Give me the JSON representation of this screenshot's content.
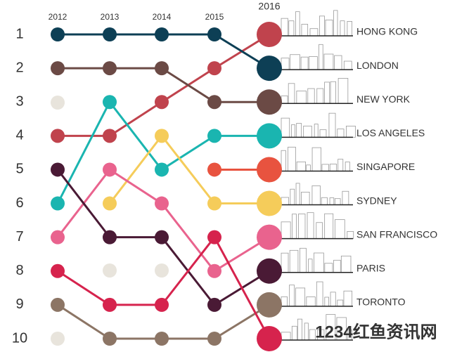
{
  "chart_data": {
    "type": "bump",
    "categories": [
      "2012",
      "2013",
      "2014",
      "2015",
      "2016"
    ],
    "ylim": [
      1,
      10
    ],
    "yticks": [
      1,
      2,
      3,
      4,
      5,
      6,
      7,
      8,
      9,
      10
    ],
    "inverted": true,
    "series": [
      {
        "name": "HONG KONG",
        "color": "#c0434d",
        "values": [
          4,
          4,
          3,
          2,
          1
        ]
      },
      {
        "name": "LONDON",
        "color": "#0d3f55",
        "values": [
          1,
          1,
          1,
          1,
          2
        ]
      },
      {
        "name": "NEW YORK",
        "color": "#6b4a45",
        "values": [
          2,
          2,
          2,
          3,
          3
        ]
      },
      {
        "name": "LOS ANGELES",
        "color": "#1ab5b0",
        "values": [
          6,
          3,
          5,
          4,
          4
        ]
      },
      {
        "name": "SINGAPORE",
        "color": "#e8533f",
        "values": [
          null,
          null,
          null,
          5,
          5
        ]
      },
      {
        "name": "SYDNEY",
        "color": "#f5cc5a",
        "values": [
          null,
          6,
          4,
          6,
          6
        ]
      },
      {
        "name": "SAN FRANCISCO",
        "color": "#e9638e",
        "values": [
          7,
          5,
          6,
          8,
          7
        ]
      },
      {
        "name": "PARIS",
        "color": "#4a1a35",
        "values": [
          5,
          7,
          7,
          9,
          8
        ]
      },
      {
        "name": "TORONTO",
        "color": "#8c7565",
        "values": [
          9,
          10,
          10,
          10,
          9
        ]
      },
      {
        "color": "#d6234d",
        "values": [
          8,
          9,
          9,
          7,
          10
        ]
      }
    ],
    "watermark": "1234红鱼资讯网"
  }
}
